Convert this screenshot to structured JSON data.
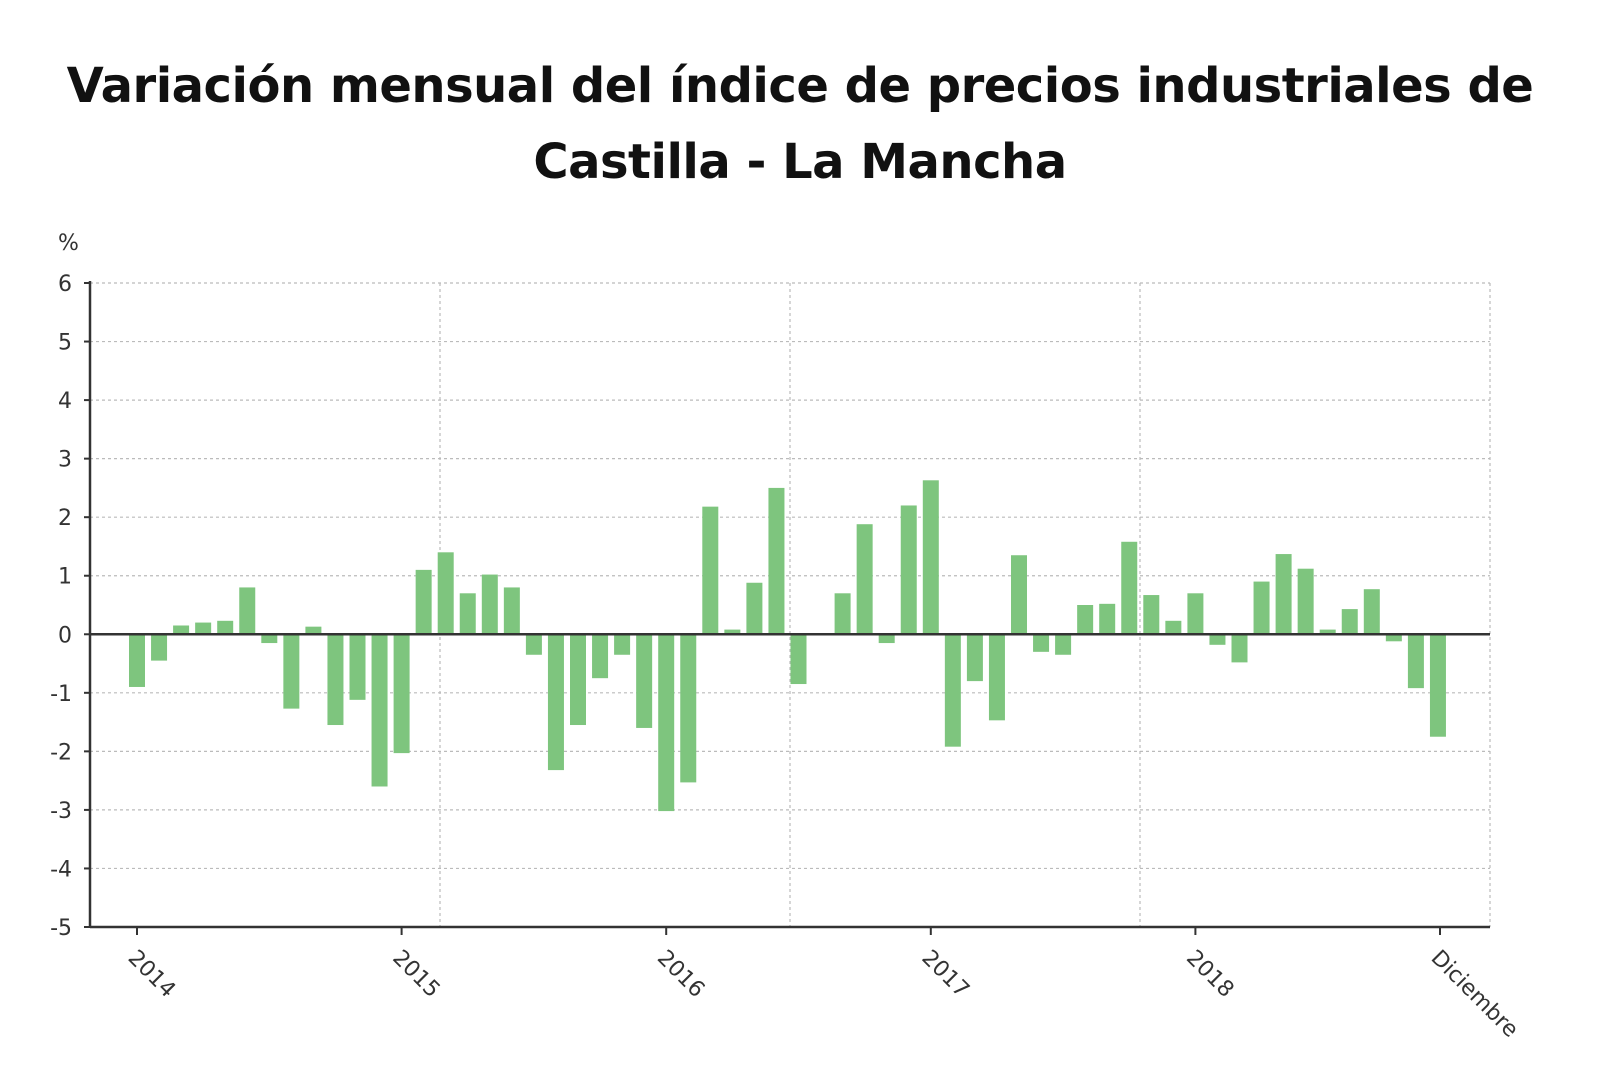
{
  "title_line1": "Variación mensual del índice de precios industriales de",
  "title_line2": "Castilla - La Mancha",
  "colors": {
    "bar": "#7ec57e",
    "axis": "#333333",
    "grid": "#bbbbbb"
  },
  "chart_data": {
    "type": "bar",
    "title": "Variación mensual del índice de precios industriales de Castilla - La Mancha",
    "ylabel": "%",
    "xlabel": "",
    "ylim": [
      -5,
      6
    ],
    "yticks": [
      6,
      5,
      4,
      3,
      2,
      1,
      0,
      -1,
      -2,
      -3,
      -4,
      -5
    ],
    "x_tick_labels": [
      "2014",
      "2015",
      "2016",
      "2017",
      "2018",
      "Diciembre"
    ],
    "series": [
      {
        "name": "Variación mensual",
        "values": [
          -0.9,
          -0.45,
          0.15,
          0.2,
          0.23,
          0.8,
          -0.15,
          -1.27,
          0.13,
          -1.55,
          -1.12,
          -2.6,
          -2.03,
          1.1,
          1.4,
          0.7,
          1.02,
          0.8,
          -0.35,
          -2.32,
          -1.55,
          -0.75,
          -0.35,
          -1.6,
          -3.02,
          -2.53,
          2.18,
          0.08,
          0.88,
          2.5,
          -0.85,
          0.0,
          0.7,
          1.88,
          -0.15,
          2.2,
          2.63,
          -1.92,
          -0.8,
          -1.47,
          1.35,
          -0.3,
          -0.35,
          0.5,
          0.52,
          1.58,
          0.67,
          0.23,
          0.7,
          -0.18,
          -0.48,
          0.9,
          1.37,
          1.12,
          0.08,
          0.43,
          0.77,
          -0.12,
          -0.92,
          -1.75
        ]
      }
    ]
  }
}
